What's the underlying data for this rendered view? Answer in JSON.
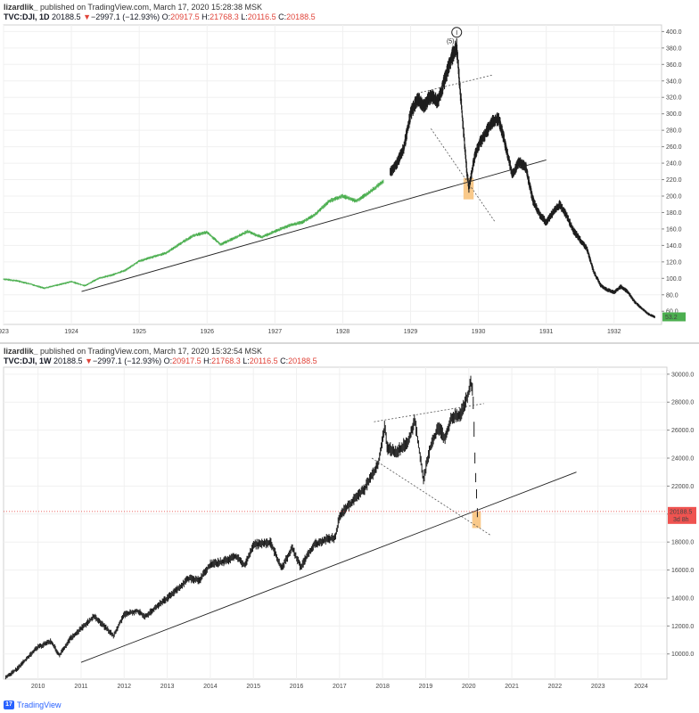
{
  "panels": [
    {
      "author": "lizardlik_",
      "published": "published on TradingView.com, March 17, 2020 15:28:38 MSK",
      "symbol": "TVC:DJI, 1D",
      "last": "20188.5",
      "arrow": "▼",
      "change": "−2997.1 (−12.93%)",
      "o_label": "O:",
      "o": "20917.5",
      "h_label": "H:",
      "h": "21768.3",
      "l_label": "L:",
      "l": "20116.5",
      "c_label": "C:",
      "c": "20188.5",
      "price_tag": "53.2",
      "wave_label": "(5)",
      "wave_circle": "I"
    },
    {
      "author": "lizardlik_",
      "published": "published on TradingView.com, March 17, 2020 15:32:54 MSK",
      "symbol": "TVC:DJI, 1W",
      "last": "20188.5",
      "arrow": "▼",
      "change": "−2997.1 (−12.93%)",
      "o_label": "O:",
      "o": "20917.5",
      "h_label": "H:",
      "h": "21768.3",
      "l_label": "L:",
      "l": "20116.5",
      "c_label": "C:",
      "c": "20188.5",
      "price_tag": "20188.5",
      "price_tag_sub": "3d 8h"
    }
  ],
  "colors": {
    "candle": "#1e1e1e",
    "early_line": "#4caf50",
    "trendline": "#222222",
    "dashed": "#555555",
    "highlight": "#f9c98a",
    "price_line": "#e53935",
    "tag_green": "#4caf50",
    "tag_red": "#ef5350"
  },
  "footer": {
    "brand": "TradingView",
    "logo_text": "17"
  },
  "chart_data": [
    {
      "type": "line",
      "title": "",
      "xlabel": "",
      "ylabel": "",
      "x_ticks": [
        "923",
        "1924",
        "1925",
        "1926",
        "1927",
        "1928",
        "1929",
        "1930",
        "1931",
        "1932"
      ],
      "y_ticks": [
        400,
        380,
        360,
        340,
        320,
        300,
        280,
        260,
        240,
        220,
        200,
        180,
        160,
        140,
        120,
        100,
        80,
        60
      ],
      "ylim": [
        44,
        408
      ],
      "xlim": [
        1923.0,
        1932.7
      ],
      "series": [
        {
          "x": [
            1923.0,
            1923.2,
            1923.4,
            1923.6,
            1923.8,
            1924.0,
            1924.2,
            1924.4,
            1924.6,
            1924.8,
            1925.0,
            1925.2,
            1925.4,
            1925.6,
            1925.8,
            1926.0,
            1926.2,
            1926.4,
            1926.6,
            1926.8,
            1927.0,
            1927.2,
            1927.4,
            1927.6,
            1927.8,
            1928.0,
            1928.2,
            1928.4,
            1928.6
          ],
          "values": [
            99,
            97,
            93,
            88,
            92,
            96,
            91,
            100,
            104,
            110,
            121,
            126,
            131,
            142,
            152,
            156,
            141,
            149,
            157,
            150,
            157,
            164,
            168,
            178,
            194,
            200,
            194,
            205,
            218
          ]
        },
        {
          "x": [
            1928.7,
            1928.8,
            1928.9,
            1929.0,
            1929.1,
            1929.2,
            1929.3,
            1929.4,
            1929.5,
            1929.6,
            1929.68,
            1929.72,
            1929.8,
            1929.83,
            1929.86,
            1929.9,
            1929.95,
            1930.0,
            1930.1,
            1930.2,
            1930.3,
            1930.4,
            1930.5,
            1930.6,
            1930.7,
            1930.8,
            1930.9,
            1931.0,
            1931.1,
            1931.2,
            1931.3,
            1931.4,
            1931.5,
            1931.6,
            1931.7,
            1931.8,
            1931.9,
            1932.0,
            1932.1,
            1932.2,
            1932.3,
            1932.4,
            1932.5,
            1932.6
          ],
          "values": [
            228,
            240,
            258,
            300,
            318,
            310,
            322,
            315,
            340,
            368,
            381,
            340,
            260,
            230,
            210,
            228,
            250,
            262,
            275,
            290,
            294,
            262,
            225,
            242,
            235,
            196,
            178,
            168,
            180,
            190,
            176,
            158,
            147,
            136,
            108,
            92,
            86,
            83,
            90,
            84,
            72,
            64,
            57,
            53
          ]
        }
      ]
    },
    {
      "type": "line",
      "title": "",
      "xlabel": "",
      "ylabel": "",
      "x_ticks": [
        "2010",
        "2011",
        "2012",
        "2013",
        "2014",
        "2015",
        "2016",
        "2017",
        "2018",
        "2019",
        "2020",
        "2021",
        "2022",
        "2023",
        "2024"
      ],
      "y_ticks": [
        30000,
        28000,
        26000,
        24000,
        22000,
        20000,
        18000,
        16000,
        14000,
        12000,
        10000
      ],
      "ylim": [
        8200,
        30500
      ],
      "xlim": [
        2009.2,
        2024.6
      ],
      "series": [
        {
          "x": [
            2009.25,
            2009.5,
            2009.75,
            2010.0,
            2010.3,
            2010.5,
            2010.75,
            2011.0,
            2011.3,
            2011.6,
            2011.75,
            2012.0,
            2012.3,
            2012.5,
            2012.75,
            2013.0,
            2013.3,
            2013.5,
            2013.75,
            2014.0,
            2014.3,
            2014.6,
            2014.8,
            2015.0,
            2015.4,
            2015.65,
            2015.9,
            2016.1,
            2016.4,
            2016.7,
            2016.9,
            2017.0,
            2017.3,
            2017.6,
            2017.9,
            2018.05,
            2018.1,
            2018.3,
            2018.6,
            2018.75,
            2018.95,
            2019.1,
            2019.3,
            2019.45,
            2019.6,
            2019.8,
            2020.0,
            2020.05,
            2020.1,
            2020.15,
            2020.2
          ],
          "values": [
            8300,
            8900,
            9700,
            10500,
            10900,
            9900,
            11100,
            11800,
            12700,
            11800,
            11300,
            12800,
            13100,
            12700,
            13400,
            14000,
            14800,
            15400,
            15300,
            16400,
            16600,
            17000,
            16300,
            17800,
            18000,
            16100,
            17600,
            16200,
            17800,
            18200,
            18300,
            19900,
            20900,
            21900,
            23600,
            26400,
            24800,
            24400,
            25200,
            26700,
            22500,
            24700,
            26200,
            25400,
            26900,
            27100,
            28700,
            29400,
            28500,
            23200,
            20200
          ]
        }
      ]
    }
  ]
}
